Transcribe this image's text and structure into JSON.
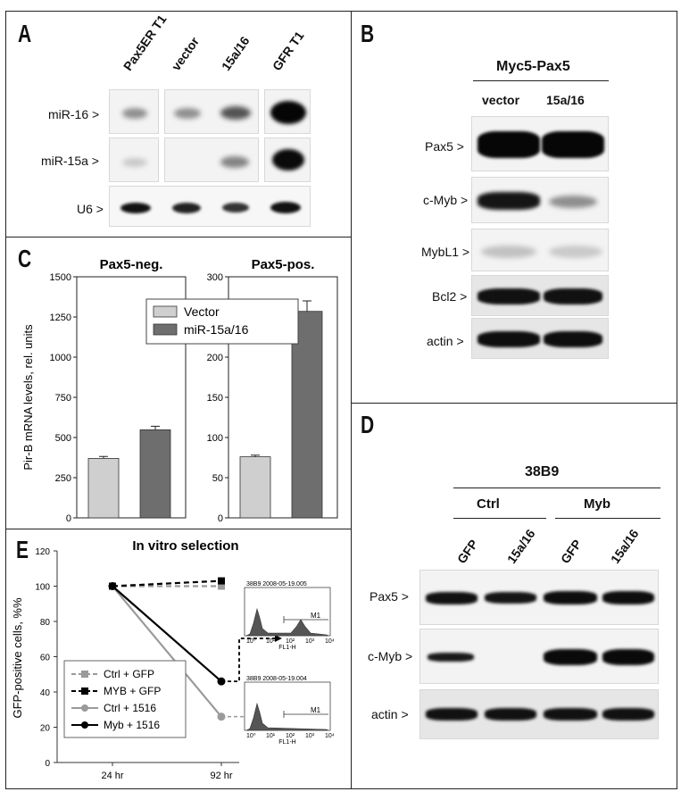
{
  "panels": {
    "A": "A",
    "B": "B",
    "C": "C",
    "D": "D",
    "E": "E"
  },
  "panelA": {
    "lanes": [
      "Pax5ER T1",
      "vector",
      "15a/16",
      "GFR T1"
    ],
    "rows": [
      "miR-16 >",
      "miR-15a >",
      "U6 >"
    ]
  },
  "panelB": {
    "title": "Myc5-Pax5",
    "lanes": [
      "vector",
      "15a/16"
    ],
    "rows": [
      "Pax5 >",
      "c-Myb >",
      "MybL1 >",
      "Bcl2 >",
      "actin >"
    ]
  },
  "panelD": {
    "cell_line": "38B9",
    "groups": [
      "Ctrl",
      "Myb"
    ],
    "lanes": [
      "GFP",
      "15a/16",
      "GFP",
      "15a/16"
    ],
    "rows": [
      "Pax5 >",
      "c-Myb >",
      "actin >"
    ]
  },
  "chart_data": [
    {
      "type": "bar",
      "title": "Pax5-neg.",
      "ylabel": "Pir-B mRNA levels, rel. units",
      "ylim": [
        0,
        1500
      ],
      "yticks": [
        "0",
        "250",
        "500",
        "750",
        "1000",
        "1250",
        "1500"
      ],
      "series": [
        {
          "name": "Vector",
          "values": [
            370
          ],
          "error": [
            12
          ],
          "color": "#cfcfcf"
        },
        {
          "name": "miR-15a/16",
          "values": [
            548
          ],
          "error": [
            22
          ],
          "color": "#6e6e6e"
        }
      ]
    },
    {
      "type": "bar",
      "title": "Pax5-pos.",
      "ylim": [
        0,
        300
      ],
      "yticks": [
        "0",
        "50",
        "100",
        "150",
        "200",
        "250",
        "300"
      ],
      "series": [
        {
          "name": "Vector",
          "values": [
            76
          ],
          "error": [
            2
          ],
          "color": "#cfcfcf"
        },
        {
          "name": "miR-15a/16",
          "values": [
            257
          ],
          "error": [
            13
          ],
          "color": "#6e6e6e"
        }
      ]
    },
    {
      "type": "line",
      "title": "In vitro selection",
      "ylabel": "GFP-positive cells, %%",
      "ylim": [
        0,
        120
      ],
      "yticks": [
        "0",
        "20",
        "40",
        "60",
        "80",
        "100",
        "120"
      ],
      "categories": [
        "24 hr",
        "92 hr"
      ],
      "series": [
        {
          "name": "Ctrl + GFP",
          "values": [
            100,
            100
          ],
          "color": "#9a9a9a",
          "dash": true,
          "marker": "square"
        },
        {
          "name": "MYB + GFP",
          "values": [
            100,
            103
          ],
          "color": "#000000",
          "dash": true,
          "marker": "square"
        },
        {
          "name": "Ctrl + 1516",
          "values": [
            100,
            26
          ],
          "color": "#9a9a9a",
          "dash": false,
          "marker": "circle"
        },
        {
          "name": "Myb + 1516",
          "values": [
            100,
            46
          ],
          "color": "#000000",
          "dash": false,
          "marker": "circle"
        }
      ]
    }
  ],
  "histograms": [
    {
      "title": "38B9 2008-05-19.005",
      "gate": "M1",
      "xlabel": "FL1-H",
      "ticks": [
        "10⁰",
        "10¹",
        "10²",
        "10³",
        "10⁴"
      ]
    },
    {
      "title": "38B9 2008-05-19.004",
      "gate": "M1",
      "xlabel": "FL1-H",
      "ticks": [
        "10⁰",
        "10¹",
        "10²",
        "10³",
        "10⁴"
      ]
    }
  ]
}
